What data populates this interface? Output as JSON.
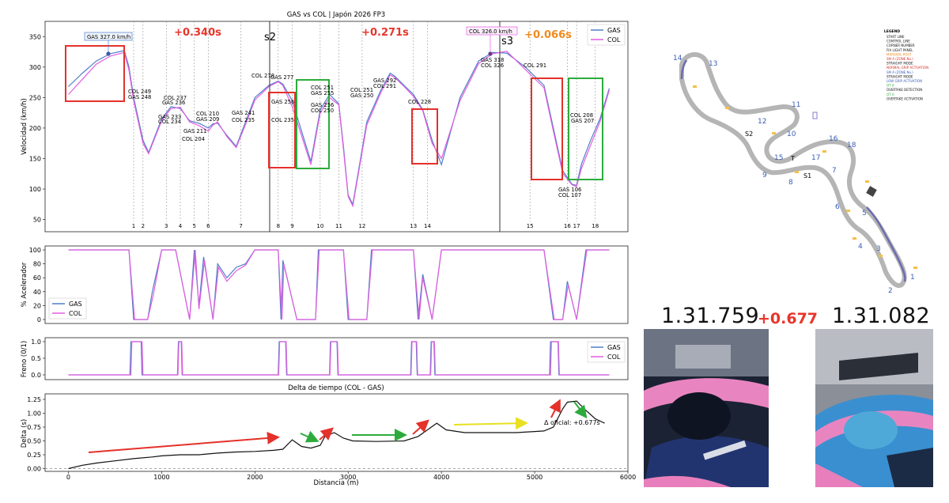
{
  "speed_panel": {
    "title": "GAS vs COL | Japón 2026 FP3",
    "ylabel": "Velocidad (km/h)",
    "yticks": [
      "350",
      "300",
      "250",
      "200",
      "150",
      "100",
      "50"
    ],
    "legend": [
      "GAS",
      "COL"
    ],
    "sector_deltas": [
      "+0.340s",
      "+0.271s",
      "+0.066s"
    ],
    "sector_labels": [
      "s2",
      "s3"
    ],
    "corner_numbers": [
      "1",
      "2",
      "3",
      "4",
      "5",
      "6",
      "7",
      "8",
      "9",
      "10",
      "11",
      "12",
      "13",
      "14",
      "15",
      "16",
      "17",
      "18"
    ],
    "annotations": [
      "GAS 327.0 km/h",
      "COL 326.0 km/h",
      "COL 249",
      "GAS 248",
      "COL 237",
      "GAS 236",
      "GAS 233",
      "COL 234",
      "GAS 211",
      "COL 204",
      "COL 210",
      "GAS 209",
      "GAS 241",
      "COL 235",
      "COL 278",
      "GAS 277",
      "GAS 256",
      "COL 235",
      "COL 251",
      "GAS 255",
      "GAS 256",
      "COL 250",
      "COL 251",
      "GAS 250",
      "GAS 292",
      "COL 291",
      "COL 228",
      "GAS 318",
      "COL 326",
      "COL 291",
      "GAS 106",
      "COL 107",
      "COL 208",
      "GAS 207"
    ]
  },
  "throttle_panel": {
    "ylabel": "% Acelerador",
    "yticks": [
      "100",
      "80",
      "60",
      "40",
      "20",
      "0"
    ],
    "legend": [
      "GAS",
      "COL"
    ]
  },
  "brake_panel": {
    "ylabel": "Freno (0/1)",
    "yticks": [
      "1.0",
      "0.5",
      "0.0"
    ],
    "legend": [
      "GAS",
      "COL"
    ]
  },
  "delta_panel": {
    "title": "Delta de tiempo (COL - GAS)",
    "ylabel": "Delta (s)",
    "xlabel": "Distancia (m)",
    "yticks": [
      "1.25",
      "1.00",
      "0.75",
      "0.50",
      "0.25",
      "0.00"
    ],
    "xticks": [
      "0",
      "1000",
      "2000",
      "3000",
      "4000",
      "5000",
      "6000"
    ],
    "official": "Δ oficial: +0.677s"
  },
  "track_map": {
    "legend_title": "LEGEND",
    "legend_items": [
      "START LINE",
      "CONTROL LINE",
      "CORNER NUMBER",
      "FIA LIGHT PANEL",
      "MARSHAL POST",
      "SM A (ZONE No.)",
      "STRAIGHT MODE",
      "NORMAL GRIP ACTIVATION",
      "SM A (ZONE No.)",
      "STRAIGHT MODE",
      "LOW GRIP ACTIVATION",
      "OT A",
      "OVERTAKE DETECTION",
      "OT A",
      "OVERTAKE ACTIVATION"
    ],
    "corner_labels": [
      "1",
      "2",
      "3",
      "4",
      "5",
      "6",
      "7",
      "8",
      "9",
      "10",
      "11",
      "12",
      "13",
      "14",
      "15",
      "16",
      "17",
      "18"
    ],
    "sector_labels": [
      "S1",
      "S2",
      "T"
    ]
  },
  "drivers": {
    "left_time": "1.31.759",
    "gap": "+0.677",
    "right_time": "1.31.082"
  },
  "colors": {
    "gas": "#4f7fc8",
    "col": "#e35ee0",
    "red_text": "#e8352b",
    "orange_text": "#f08a1c",
    "red_box": "#e4312a",
    "green_box": "#2cab3c"
  },
  "chart_data": [
    {
      "type": "line",
      "title": "GAS vs COL | Japón 2026 FP3",
      "xlabel": "",
      "ylabel": "Velocidad (km/h)",
      "xlim": [
        -250,
        6000
      ],
      "ylim": [
        30,
        375
      ],
      "series": [
        {
          "name": "GAS",
          "x": [
            0,
            150,
            300,
            450,
            600,
            650,
            700,
            800,
            860,
            1000,
            1100,
            1200,
            1300,
            1400,
            1500,
            1550,
            1600,
            1700,
            1800,
            1900,
            2000,
            2150,
            2250,
            2300,
            2400,
            2600,
            2700,
            2800,
            2900,
            2950,
            3000,
            3050,
            3200,
            3350,
            3450,
            3500,
            3600,
            3700,
            3800,
            3900,
            4000,
            4200,
            4400,
            4550,
            4700,
            4900,
            5000,
            5100,
            5200,
            5300,
            5400,
            5450,
            5500,
            5600,
            5700,
            5800
          ],
          "y": [
            268,
            290,
            310,
            322,
            327,
            300,
            250,
            180,
            160,
            215,
            235,
            232,
            212,
            208,
            200,
            207,
            208,
            188,
            170,
            210,
            250,
            270,
            277,
            272,
            245,
            145,
            230,
            255,
            240,
            170,
            90,
            75,
            210,
            262,
            290,
            285,
            270,
            255,
            230,
            180,
            140,
            250,
            310,
            324,
            323,
            300,
            285,
            270,
            200,
            130,
            108,
            106,
            140,
            180,
            215,
            265
          ]
        },
        {
          "name": "COL",
          "x": [
            0,
            150,
            300,
            450,
            600,
            650,
            700,
            800,
            860,
            1000,
            1100,
            1200,
            1300,
            1400,
            1500,
            1550,
            1600,
            1700,
            1800,
            1900,
            2000,
            2150,
            2250,
            2300,
            2400,
            2600,
            2700,
            2800,
            2900,
            2950,
            3000,
            3050,
            3200,
            3350,
            3450,
            3500,
            3600,
            3700,
            3800,
            3900,
            4000,
            4200,
            4400,
            4550,
            4700,
            4900,
            5000,
            5100,
            5200,
            5300,
            5400,
            5450,
            5500,
            5600,
            5700,
            5800
          ],
          "y": [
            255,
            280,
            305,
            318,
            324,
            295,
            245,
            175,
            158,
            212,
            232,
            234,
            210,
            204,
            195,
            205,
            210,
            186,
            168,
            206,
            246,
            268,
            276,
            270,
            235,
            140,
            225,
            250,
            238,
            165,
            88,
            72,
            205,
            258,
            287,
            283,
            268,
            252,
            228,
            175,
            150,
            245,
            306,
            322,
            326,
            296,
            281,
            266,
            195,
            126,
            107,
            104,
            133,
            172,
            210,
            262
          ]
        }
      ]
    },
    {
      "type": "line",
      "ylabel": "% Acelerador",
      "ylim": [
        0,
        100
      ],
      "series": [
        {
          "name": "GAS",
          "x": [
            0,
            650,
            700,
            850,
            900,
            1000,
            1150,
            1300,
            1350,
            1400,
            1450,
            1550,
            1600,
            1700,
            1800,
            1900,
            2000,
            2250,
            2280,
            2300,
            2450,
            2650,
            2680,
            2800,
            2950,
            3000,
            3200,
            3250,
            3550,
            3700,
            3750,
            3800,
            3900,
            4000,
            4050,
            4500,
            5100,
            5200,
            5300,
            5350,
            5450,
            5550,
            5800
          ],
          "y": [
            100,
            100,
            0,
            0,
            40,
            100,
            100,
            0,
            100,
            20,
            90,
            0,
            80,
            60,
            75,
            80,
            100,
            100,
            0,
            85,
            0,
            0,
            100,
            100,
            100,
            0,
            0,
            100,
            100,
            100,
            0,
            65,
            0,
            100,
            100,
            100,
            100,
            0,
            0,
            55,
            0,
            100,
            100
          ]
        },
        {
          "name": "COL",
          "x": [
            0,
            650,
            710,
            850,
            910,
            1000,
            1150,
            1300,
            1360,
            1400,
            1460,
            1550,
            1610,
            1700,
            1800,
            1900,
            2000,
            2250,
            2290,
            2310,
            2450,
            2650,
            2690,
            2800,
            2950,
            3010,
            3200,
            3260,
            3550,
            3700,
            3760,
            3800,
            3900,
            4000,
            4060,
            4500,
            5100,
            5210,
            5300,
            5360,
            5450,
            5560,
            5800
          ],
          "y": [
            100,
            100,
            0,
            0,
            35,
            100,
            100,
            0,
            100,
            15,
            85,
            0,
            75,
            55,
            70,
            78,
            100,
            100,
            0,
            80,
            0,
            0,
            100,
            100,
            100,
            0,
            0,
            100,
            100,
            100,
            0,
            60,
            0,
            100,
            100,
            100,
            100,
            0,
            0,
            50,
            0,
            100,
            100
          ]
        }
      ]
    },
    {
      "type": "line",
      "ylabel": "Freno (0/1)",
      "ylim": [
        0,
        1
      ],
      "series": [
        {
          "name": "GAS",
          "x": [
            0,
            660,
            670,
            780,
            790,
            1170,
            1180,
            1210,
            1220,
            2250,
            2260,
            2330,
            2340,
            2800,
            2810,
            2880,
            2890,
            3670,
            3680,
            3730,
            3740,
            3880,
            3890,
            3920,
            3930,
            5160,
            5170,
            5250,
            5260,
            5800
          ],
          "y": [
            0,
            0,
            1,
            1,
            0,
            0,
            1,
            1,
            0,
            0,
            1,
            1,
            0,
            0,
            1,
            1,
            0,
            0,
            1,
            1,
            0,
            0,
            1,
            1,
            0,
            0,
            1,
            1,
            0,
            0
          ]
        },
        {
          "name": "COL",
          "x": [
            0,
            670,
            680,
            790,
            800,
            1175,
            1185,
            1215,
            1225,
            2255,
            2265,
            2335,
            2345,
            2805,
            2815,
            2885,
            2895,
            3675,
            3685,
            3735,
            3745,
            3885,
            3895,
            3925,
            3935,
            5170,
            5180,
            5255,
            5265,
            5800
          ],
          "y": [
            0,
            0,
            1,
            1,
            0,
            0,
            1,
            1,
            0,
            0,
            1,
            1,
            0,
            0,
            1,
            1,
            0,
            0,
            1,
            1,
            0,
            0,
            1,
            1,
            0,
            0,
            1,
            1,
            0,
            0
          ]
        }
      ]
    },
    {
      "type": "line",
      "title": "Delta de tiempo (COL - GAS)",
      "xlabel": "Distancia (m)",
      "ylabel": "Delta (s)",
      "xlim": [
        -250,
        6000
      ],
      "ylim": [
        -0.05,
        1.35
      ],
      "series": [
        {
          "x": [
            0,
            150,
            300,
            500,
            700,
            900,
            1000,
            1200,
            1400,
            1600,
            1800,
            2000,
            2200,
            2300,
            2400,
            2500,
            2600,
            2700,
            2750,
            2850,
            2950,
            3050,
            3300,
            3600,
            3750,
            3850,
            3950,
            4050,
            4250,
            4500,
            4800,
            5000,
            5100,
            5200,
            5300,
            5350,
            5450,
            5550,
            5650,
            5750
          ],
          "y": [
            0,
            0.06,
            0.1,
            0.14,
            0.18,
            0.21,
            0.23,
            0.25,
            0.25,
            0.28,
            0.3,
            0.31,
            0.33,
            0.35,
            0.52,
            0.4,
            0.37,
            0.42,
            0.58,
            0.65,
            0.55,
            0.5,
            0.49,
            0.5,
            0.58,
            0.7,
            0.82,
            0.7,
            0.65,
            0.65,
            0.65,
            0.67,
            0.68,
            0.75,
            1.08,
            1.2,
            1.22,
            1.05,
            0.9,
            0.82
          ]
        }
      ]
    }
  ]
}
